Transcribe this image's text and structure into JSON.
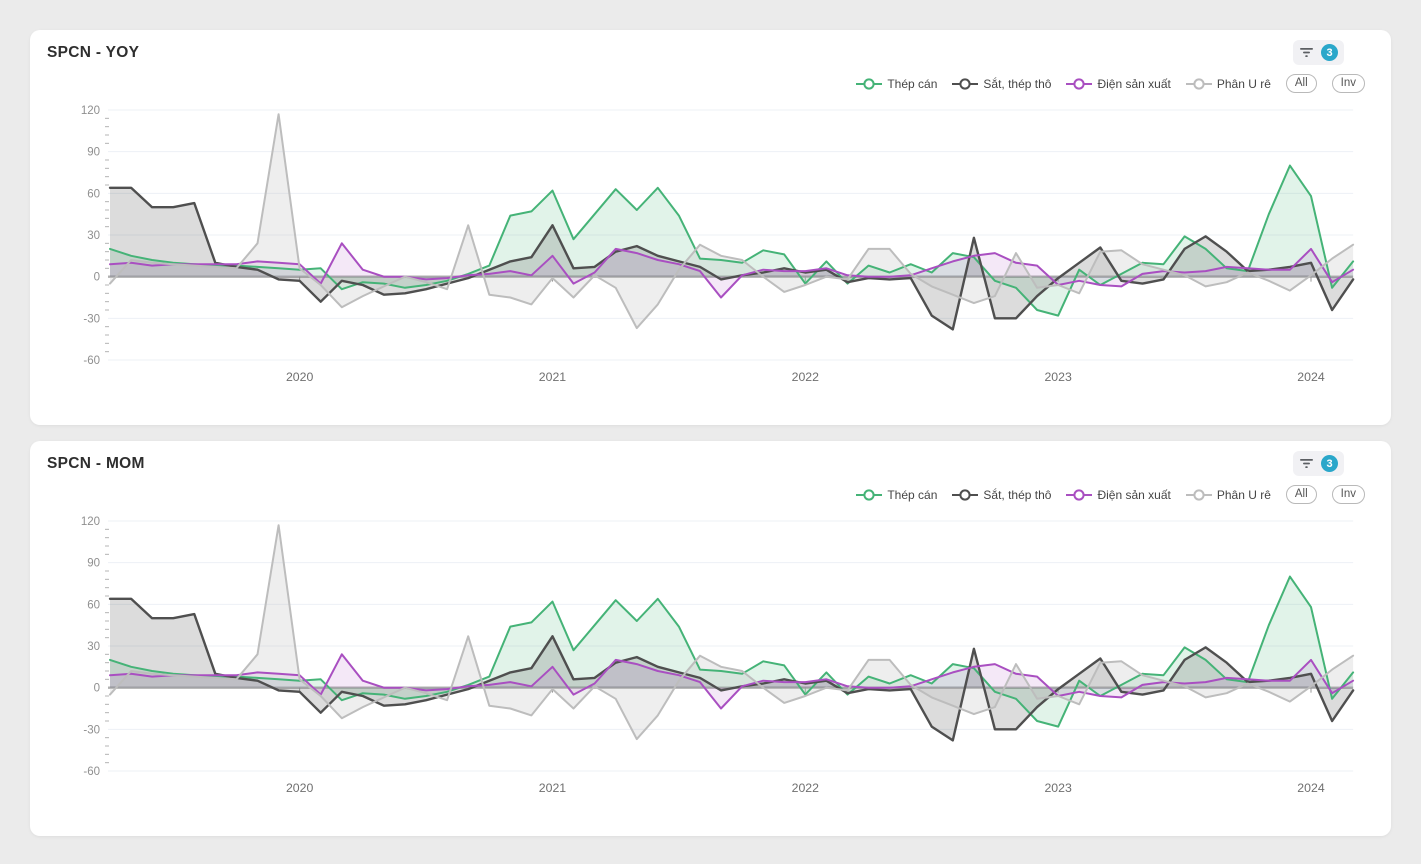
{
  "page": {
    "background": "#ebebeb"
  },
  "panels": [
    {
      "title": "SPCN - YOY",
      "filter_count": "3"
    },
    {
      "title": "SPCN - MOM",
      "filter_count": "3"
    }
  ],
  "legend": {
    "all_label": "All",
    "inv_label": "Inv"
  },
  "colors": {
    "badge_blue": "#2aa7ca",
    "zero_line": "#b0b0b0",
    "gridline": "#edf0f6",
    "axis_label": "#8f8f8f",
    "year_label": "#6f6f6f"
  },
  "chart_data": [
    {
      "type": "area",
      "title": "SPCN - YOY",
      "x_unit": "month",
      "x_start": "2019-04",
      "x_end": "2024-03",
      "x_tick_labels": [
        "2020",
        "2021",
        "2022",
        "2023",
        "2024"
      ],
      "x_tick_month_index": [
        9,
        21,
        33,
        45,
        57
      ],
      "ylim": [
        -60,
        120
      ],
      "y_ticks": [
        120,
        90,
        60,
        30,
        0,
        -30,
        -60
      ],
      "grid": true,
      "legend_position": "top-right",
      "series": [
        {
          "name": "Thép cán",
          "color": "#45b377",
          "fill_opacity": 0.16,
          "values": [
            20,
            15,
            12,
            10,
            9,
            8,
            8,
            7,
            6,
            5,
            6,
            -9,
            -4,
            -5,
            -8,
            -6,
            -3,
            2,
            8,
            44,
            47,
            62,
            27,
            45,
            63,
            48,
            64,
            44,
            13,
            12,
            10,
            19,
            16,
            -5,
            11,
            -5,
            8,
            3,
            9,
            3,
            17,
            14,
            -3,
            -8,
            -24,
            -28,
            5,
            -6,
            2,
            10,
            9,
            29,
            20,
            6,
            4,
            45,
            80,
            58,
            -8,
            11
          ]
        },
        {
          "name": "Sắt, thép thô",
          "color": "#4f4f4f",
          "fill_opacity": 0.2,
          "values": [
            64,
            64,
            50,
            50,
            53,
            10,
            7,
            5,
            -2,
            -3,
            -18,
            -3,
            -6,
            -13,
            -12,
            -9,
            -5,
            -1,
            5,
            11,
            14,
            37,
            6,
            7,
            18,
            22,
            15,
            11,
            7,
            -2,
            1,
            3,
            6,
            3,
            5,
            -4,
            -1,
            -2,
            -1,
            -28,
            -38,
            28,
            -30,
            -30,
            -14,
            -1,
            10,
            21,
            -3,
            -5,
            -2,
            20,
            29,
            18,
            4,
            5,
            7,
            10,
            -24,
            -2
          ]
        },
        {
          "name": "Điện sản xuất",
          "color": "#a94fc1",
          "fill_opacity": 0.13,
          "values": [
            9,
            10,
            8,
            9,
            9,
            9,
            9,
            11,
            10,
            9,
            -5,
            24,
            5,
            0,
            0,
            -2,
            -1,
            1,
            2,
            4,
            1,
            15,
            -5,
            3,
            20,
            17,
            12,
            9,
            4,
            -15,
            1,
            5,
            4,
            4,
            6,
            1,
            0,
            0,
            1,
            6,
            11,
            15,
            17,
            10,
            8,
            -6,
            -3,
            -6,
            -7,
            2,
            4,
            3,
            4,
            7,
            6,
            5,
            5,
            20,
            -4,
            5
          ]
        },
        {
          "name": "Phân U rê",
          "color": "#bdbdbd",
          "fill_opacity": 0.26,
          "values": [
            -5,
            12,
            10,
            9,
            8,
            7,
            6,
            24,
            117,
            6,
            -6,
            -22,
            -14,
            -7,
            0,
            -4,
            -9,
            37,
            -13,
            -15,
            -20,
            -1,
            -15,
            1,
            -8,
            -37,
            -20,
            5,
            23,
            15,
            12,
            0,
            -11,
            -6,
            0,
            -2,
            20,
            20,
            2,
            -7,
            -13,
            -19,
            -14,
            17,
            -8,
            -6,
            -12,
            18,
            19,
            9,
            5,
            1,
            -7,
            -4,
            3,
            -3,
            -10,
            1,
            13,
            23
          ]
        }
      ]
    },
    {
      "type": "area",
      "title": "SPCN - MOM",
      "x_unit": "month",
      "x_start": "2019-04",
      "x_end": "2024-03",
      "x_tick_labels": [
        "2020",
        "2021",
        "2022",
        "2023",
        "2024"
      ],
      "x_tick_month_index": [
        9,
        21,
        33,
        45,
        57
      ],
      "ylim": [
        -60,
        120
      ],
      "y_ticks": [
        120,
        90,
        60,
        30,
        0,
        -30,
        -60
      ],
      "grid": true,
      "legend_position": "top-right",
      "series": [
        {
          "name": "Thép cán",
          "color": "#45b377",
          "fill_opacity": 0.16,
          "values": [
            20,
            15,
            12,
            10,
            9,
            8,
            8,
            7,
            6,
            5,
            6,
            -9,
            -4,
            -5,
            -8,
            -6,
            -3,
            2,
            8,
            44,
            47,
            62,
            27,
            45,
            63,
            48,
            64,
            44,
            13,
            12,
            10,
            19,
            16,
            -5,
            11,
            -5,
            8,
            3,
            9,
            3,
            17,
            14,
            -3,
            -8,
            -24,
            -28,
            5,
            -6,
            2,
            10,
            9,
            29,
            20,
            6,
            4,
            45,
            80,
            58,
            -8,
            11
          ]
        },
        {
          "name": "Sắt, thép thô",
          "color": "#4f4f4f",
          "fill_opacity": 0.2,
          "values": [
            64,
            64,
            50,
            50,
            53,
            10,
            7,
            5,
            -2,
            -3,
            -18,
            -3,
            -6,
            -13,
            -12,
            -9,
            -5,
            -1,
            5,
            11,
            14,
            37,
            6,
            7,
            18,
            22,
            15,
            11,
            7,
            -2,
            1,
            3,
            6,
            3,
            5,
            -4,
            -1,
            -2,
            -1,
            -28,
            -38,
            28,
            -30,
            -30,
            -14,
            -1,
            10,
            21,
            -3,
            -5,
            -2,
            20,
            29,
            18,
            4,
            5,
            7,
            10,
            -24,
            -2
          ]
        },
        {
          "name": "Điện sản xuất",
          "color": "#a94fc1",
          "fill_opacity": 0.13,
          "values": [
            9,
            10,
            8,
            9,
            9,
            9,
            9,
            11,
            10,
            9,
            -5,
            24,
            5,
            0,
            0,
            -2,
            -1,
            1,
            2,
            4,
            1,
            15,
            -5,
            3,
            20,
            17,
            12,
            9,
            4,
            -15,
            1,
            5,
            4,
            4,
            6,
            1,
            0,
            0,
            1,
            6,
            11,
            15,
            17,
            10,
            8,
            -6,
            -3,
            -6,
            -7,
            2,
            4,
            3,
            4,
            7,
            6,
            5,
            5,
            20,
            -4,
            5
          ]
        },
        {
          "name": "Phân U rê",
          "color": "#bdbdbd",
          "fill_opacity": 0.26,
          "values": [
            -5,
            12,
            10,
            9,
            8,
            7,
            6,
            24,
            117,
            6,
            -6,
            -22,
            -14,
            -7,
            0,
            -4,
            -9,
            37,
            -13,
            -15,
            -20,
            -1,
            -15,
            1,
            -8,
            -37,
            -20,
            5,
            23,
            15,
            12,
            0,
            -11,
            -6,
            0,
            -2,
            20,
            20,
            2,
            -7,
            -13,
            -19,
            -14,
            17,
            -8,
            -6,
            -12,
            18,
            19,
            9,
            5,
            1,
            -7,
            -4,
            3,
            -3,
            -10,
            1,
            13,
            23
          ]
        }
      ]
    }
  ]
}
